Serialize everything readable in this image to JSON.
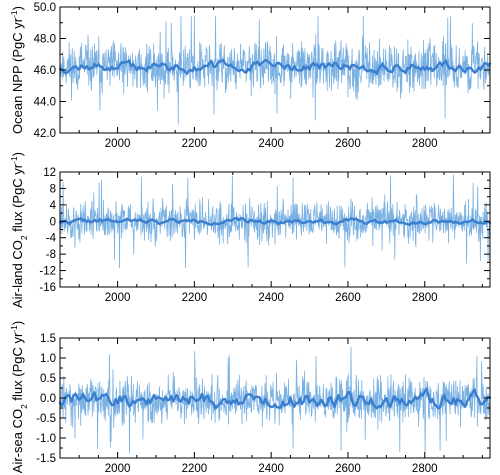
{
  "colors": {
    "thin_line": "#7ab1e3",
    "smooth_line": "#3a7fcf",
    "axis": "#000000",
    "background": "#ffffff"
  },
  "chart_data": [
    {
      "type": "line",
      "ylabel": "Ocean NPP (PgC yr",
      "ylabel_sup": "-1",
      "ylabel_tail": ")",
      "xlim": [
        1850,
        2970
      ],
      "xticks": [
        2000,
        2200,
        2400,
        2600,
        2800
      ],
      "xtick_labels": [
        "2000",
        "2200",
        "2400",
        "2600",
        "2800"
      ],
      "ylim": [
        42.0,
        50.0
      ],
      "yticks": [
        42,
        44,
        46,
        48,
        50
      ],
      "ytick_labels": [
        "42.0",
        "44.0",
        "46.0",
        "48.0",
        "50.0"
      ],
      "series": [
        {
          "kind": "annual",
          "mean": 46.2,
          "amplitude": 1.15,
          "min": 42.2,
          "max": 49.4,
          "seed": 11
        },
        {
          "kind": "smoothed",
          "mean": 46.2,
          "amplitude": 0.28,
          "seed": 12
        }
      ]
    },
    {
      "type": "line",
      "ylabel": "Air-land CO",
      "ylabel_sub": "2",
      "ylabel_tail": " flux (PgC yr",
      "ylabel_sup": "-1",
      "ylabel_tail2": ")",
      "xlim": [
        1850,
        2970
      ],
      "xticks": [
        2000,
        2200,
        2400,
        2600,
        2800
      ],
      "xtick_labels": [
        "2000",
        "2200",
        "2400",
        "2600",
        "2800"
      ],
      "ylim": [
        -16,
        12
      ],
      "yticks": [
        -16,
        -12,
        -8,
        -4,
        0,
        4,
        8,
        12
      ],
      "ytick_labels": [
        "-16",
        "-12",
        "-8",
        "-4",
        "0",
        "4",
        "8",
        "12"
      ],
      "series": [
        {
          "kind": "annual",
          "mean": 0.0,
          "amplitude": 3.6,
          "min": -12.5,
          "max": 11.5,
          "seed": 21
        },
        {
          "kind": "smoothed",
          "mean": 0.0,
          "amplitude": 0.5,
          "seed": 22
        }
      ]
    },
    {
      "type": "line",
      "ylabel": "Air-sea CO",
      "ylabel_sub": "2",
      "ylabel_tail": " flux (PgC yr",
      "ylabel_sup": "-1",
      "ylabel_tail2": ")",
      "xlim": [
        1850,
        2970
      ],
      "xticks": [
        2000,
        2200,
        2400,
        2600,
        2800
      ],
      "xtick_labels": [
        "2000",
        "2200",
        "2400",
        "2600",
        "2800"
      ],
      "ylim": [
        -1.5,
        1.5
      ],
      "yticks": [
        -1.5,
        -1.0,
        -0.5,
        0.0,
        0.5,
        1.0,
        1.5
      ],
      "ytick_labels": [
        "-1.5",
        "-1.0",
        "-0.5",
        "0.0",
        "0.5",
        "1.0",
        "1.5"
      ],
      "series": [
        {
          "kind": "annual",
          "mean": -0.05,
          "amplitude": 0.42,
          "min": -1.45,
          "max": 1.45,
          "seed": 31
        },
        {
          "kind": "smoothed",
          "mean": -0.05,
          "amplitude": 0.17,
          "seed": 32
        }
      ]
    }
  ]
}
